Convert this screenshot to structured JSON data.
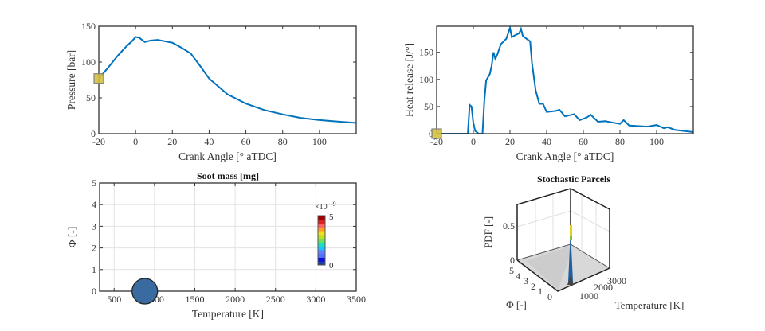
{
  "chart_data": [
    {
      "type": "line",
      "xlabel": "Crank Angle [° aTDC]",
      "ylabel": "Pressure [bar]",
      "xlim": [
        -20,
        120
      ],
      "ylim": [
        0,
        150
      ],
      "xticks": [
        -20,
        0,
        20,
        40,
        60,
        80,
        100
      ],
      "yticks": [
        0,
        50,
        100,
        150
      ],
      "grid": false,
      "color": "#0072BD",
      "marker_color": "#D4C040",
      "marker": {
        "x": -20,
        "y": 77
      },
      "x": [
        -20,
        -15,
        -10,
        -5,
        -2,
        0,
        2,
        5,
        8,
        12,
        20,
        25,
        30,
        35,
        40,
        50,
        60,
        70,
        80,
        90,
        100,
        110,
        120
      ],
      "y": [
        77,
        92,
        108,
        122,
        129,
        135,
        134,
        128,
        130,
        131,
        127,
        120,
        112,
        95,
        77,
        55,
        42,
        33,
        27,
        22,
        19,
        17,
        15
      ]
    },
    {
      "type": "line",
      "xlabel": "Crank Angle [° aTDC]",
      "ylabel": "Heat release [J/°]",
      "xlim": [
        -20,
        120
      ],
      "ylim": [
        0,
        198
      ],
      "xticks": [
        -20,
        0,
        20,
        40,
        60,
        80,
        100
      ],
      "yticks": [
        0,
        50,
        100,
        150
      ],
      "grid": false,
      "color": "#0072BD",
      "marker_color": "#D4C040",
      "marker": {
        "x": -20,
        "y": 0
      },
      "x": [
        -20,
        -3,
        -2,
        -1,
        0,
        1,
        3,
        5,
        6,
        7,
        9,
        10,
        11,
        12,
        13,
        15,
        18,
        20,
        21,
        22,
        25,
        26,
        27,
        29,
        31,
        32,
        34,
        36,
        38,
        40,
        45,
        47,
        50,
        55,
        58,
        62,
        64,
        68,
        72,
        80,
        82,
        85,
        95,
        100,
        104,
        106,
        110,
        115,
        120
      ],
      "y": [
        0,
        0,
        53,
        50,
        20,
        5,
        0,
        0,
        60,
        98,
        110,
        125,
        150,
        138,
        145,
        165,
        175,
        195,
        178,
        180,
        185,
        193,
        180,
        175,
        170,
        130,
        80,
        55,
        55,
        40,
        42,
        44,
        32,
        36,
        25,
        30,
        35,
        22,
        23,
        18,
        25,
        15,
        13,
        16,
        10,
        12,
        7,
        5,
        3
      ]
    },
    {
      "type": "scatter",
      "title": "Soot mass [mg]",
      "xlabel": "Temperature [K]",
      "ylabel": "Φ [-]",
      "xlim": [
        320,
        3500
      ],
      "ylim": [
        0,
        5
      ],
      "xticks": [
        500,
        1000,
        1500,
        2000,
        2500,
        3000,
        3500
      ],
      "yticks": [
        0,
        1,
        2,
        3,
        4,
        5
      ],
      "grid": true,
      "points": [
        {
          "x": 880,
          "y": 0,
          "color": "#3A6BA0"
        }
      ],
      "colorbar": {
        "min": "0",
        "max": "5",
        "exponent": "×10^-9",
        "label_max": "5",
        "label_min": "0",
        "label_exp": "×10",
        "label_exp_sup": "-9",
        "colors": [
          "#1F3FA0",
          "#1010E0",
          "#5070FF",
          "#6080FF",
          "#20C0FF",
          "#20E0C0",
          "#70E060",
          "#C0E020",
          "#F0E020",
          "#FFA020",
          "#FF6060",
          "#E02020",
          "#A00000"
        ]
      }
    },
    {
      "type": "surface3d",
      "title": "Stochastic Parcels",
      "xlabel": "Temperature [K]",
      "ylabel": "Φ [-]",
      "zlabel": "PDF [-]",
      "xticks": [
        "1000",
        "2000",
        "3000"
      ],
      "yticks": [
        "0",
        "1",
        "2",
        "3",
        "4",
        "5"
      ],
      "zticks": [
        "0",
        "0.5"
      ],
      "peak": {
        "temperature": 900,
        "phi": 0,
        "pdf": 0.55
      }
    }
  ]
}
